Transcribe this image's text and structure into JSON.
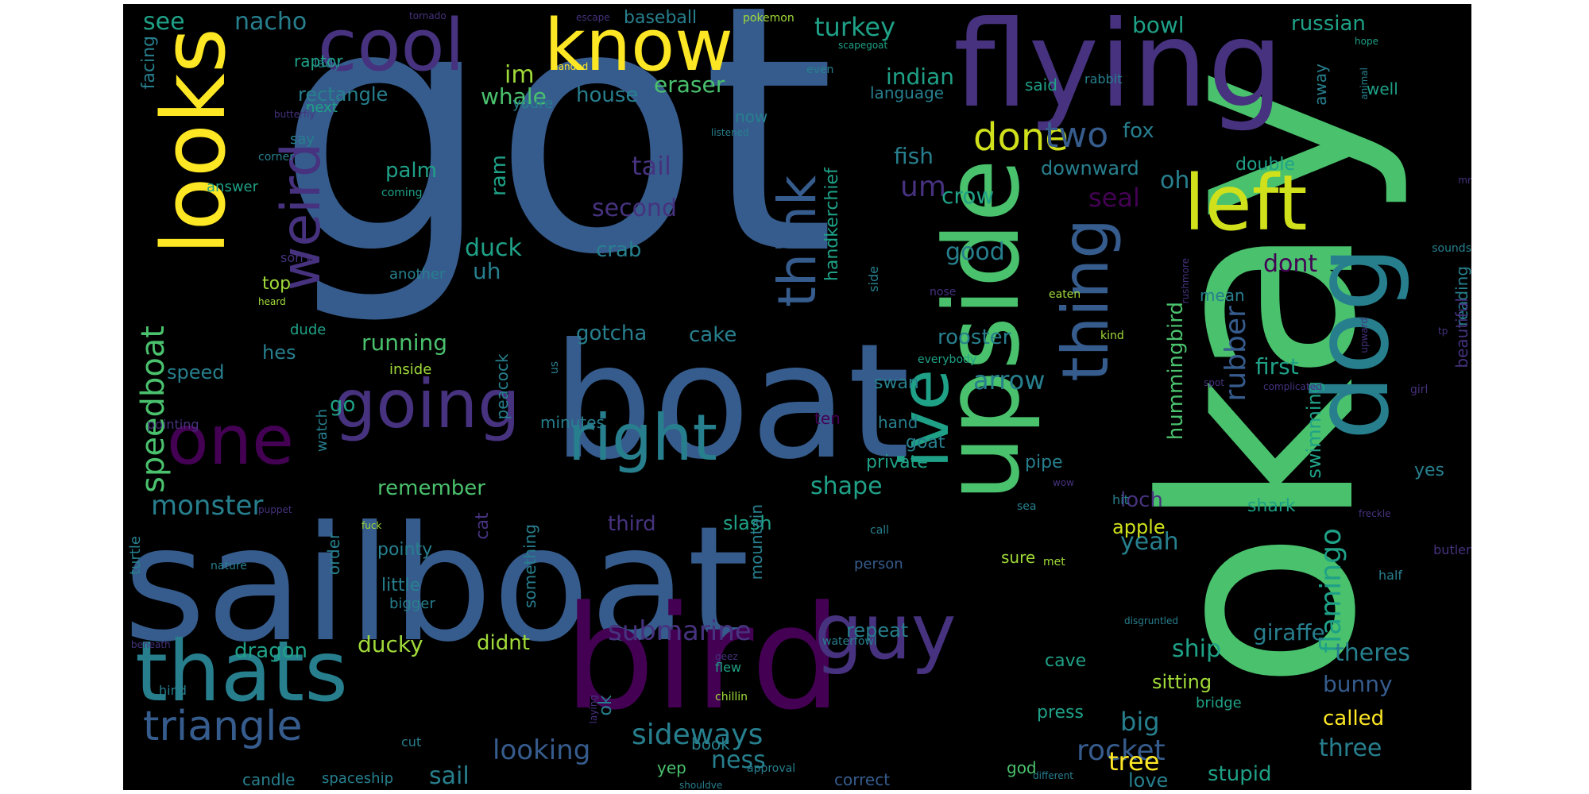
{
  "palette": {
    "background": "#000000",
    "yellow": "#fde725",
    "lime": "#d0e11c",
    "light_green": "#a0da39",
    "green": "#4ac16d",
    "teal_green": "#1fa187",
    "teal": "#277f8e",
    "blue": "#365c8d",
    "indigo": "#46327e",
    "purple": "#440154"
  },
  "words": [
    {
      "text": "got",
      "color": "blue"
    },
    {
      "text": "sailboat",
      "color": "blue"
    },
    {
      "text": "boat",
      "color": "blue"
    },
    {
      "text": "bird",
      "color": "purple"
    },
    {
      "text": "okay",
      "color": "green"
    },
    {
      "text": "flying",
      "color": "indigo"
    },
    {
      "text": "upside",
      "color": "green"
    },
    {
      "text": "dog",
      "color": "teal"
    },
    {
      "text": "looks",
      "color": "yellow"
    },
    {
      "text": "cool",
      "color": "indigo"
    },
    {
      "text": "know",
      "color": "yellow"
    },
    {
      "text": "thats",
      "color": "teal"
    },
    {
      "text": "guy",
      "color": "indigo"
    },
    {
      "text": "left",
      "color": "lime"
    },
    {
      "text": "right",
      "color": "teal"
    },
    {
      "text": "one",
      "color": "purple"
    },
    {
      "text": "going",
      "color": "indigo"
    },
    {
      "text": "ive",
      "color": "teal_green"
    },
    {
      "text": "thing",
      "color": "blue"
    },
    {
      "text": "weird",
      "color": "indigo"
    },
    {
      "text": "think",
      "color": "blue"
    },
    {
      "text": "triangle",
      "color": "blue"
    },
    {
      "text": "done",
      "color": "lime"
    },
    {
      "text": "two",
      "color": "blue"
    },
    {
      "text": "um",
      "color": "indigo"
    },
    {
      "text": "speedboat",
      "color": "green"
    },
    {
      "text": "flamingo",
      "color": "teal_green"
    },
    {
      "text": "rubber",
      "color": "blue"
    },
    {
      "text": "sideways",
      "color": "teal"
    },
    {
      "text": "monster",
      "color": "teal"
    },
    {
      "text": "submarine",
      "color": "indigo"
    },
    {
      "text": "rocket",
      "color": "blue"
    },
    {
      "text": "looking",
      "color": "blue"
    },
    {
      "text": "see",
      "color": "teal_green"
    },
    {
      "text": "nacho",
      "color": "teal"
    },
    {
      "text": "turkey",
      "color": "teal_green"
    },
    {
      "text": "bowl",
      "color": "teal_green"
    },
    {
      "text": "russian",
      "color": "teal_green"
    },
    {
      "text": "im",
      "color": "light_green"
    },
    {
      "text": "eraser",
      "color": "green"
    },
    {
      "text": "indian",
      "color": "teal_green"
    },
    {
      "text": "whale",
      "color": "green"
    },
    {
      "text": "house",
      "color": "teal"
    },
    {
      "text": "rectangle",
      "color": "teal"
    },
    {
      "text": "baseball",
      "color": "teal"
    },
    {
      "text": "fox",
      "color": "teal"
    },
    {
      "text": "fish",
      "color": "teal"
    },
    {
      "text": "tail",
      "color": "indigo"
    },
    {
      "text": "second",
      "color": "indigo"
    },
    {
      "text": "palm",
      "color": "teal_green"
    },
    {
      "text": "ram",
      "color": "teal_green"
    },
    {
      "text": "crow",
      "color": "teal_green"
    },
    {
      "text": "seal",
      "color": "purple"
    },
    {
      "text": "oh",
      "color": "teal"
    },
    {
      "text": "double",
      "color": "teal_green"
    },
    {
      "text": "downward",
      "color": "teal"
    },
    {
      "text": "duck",
      "color": "teal_green"
    },
    {
      "text": "uh",
      "color": "teal"
    },
    {
      "text": "crab",
      "color": "teal"
    },
    {
      "text": "good",
      "color": "teal"
    },
    {
      "text": "dont",
      "color": "purple"
    },
    {
      "text": "handkerchief",
      "color": "teal_green"
    },
    {
      "text": "gotcha",
      "color": "teal"
    },
    {
      "text": "cake",
      "color": "teal"
    },
    {
      "text": "rooster",
      "color": "teal"
    },
    {
      "text": "running",
      "color": "green"
    },
    {
      "text": "hummingbird",
      "color": "green"
    },
    {
      "text": "arrow",
      "color": "teal"
    },
    {
      "text": "first",
      "color": "teal_green"
    },
    {
      "text": "shape",
      "color": "teal_green"
    },
    {
      "text": "remember",
      "color": "green"
    },
    {
      "text": "loch",
      "color": "indigo"
    },
    {
      "text": "yeah",
      "color": "teal"
    },
    {
      "text": "apple",
      "color": "lime"
    },
    {
      "text": "ship",
      "color": "teal_green"
    },
    {
      "text": "giraffe",
      "color": "teal"
    },
    {
      "text": "theres",
      "color": "teal"
    },
    {
      "text": "bunny",
      "color": "blue"
    },
    {
      "text": "called",
      "color": "yellow"
    },
    {
      "text": "three",
      "color": "teal"
    },
    {
      "text": "tree",
      "color": "yellow"
    },
    {
      "text": "big",
      "color": "teal"
    },
    {
      "text": "ness",
      "color": "teal"
    },
    {
      "text": "stupid",
      "color": "teal_green"
    },
    {
      "text": "love",
      "color": "teal"
    },
    {
      "text": "sail",
      "color": "teal"
    },
    {
      "text": "dragon",
      "color": "teal_green"
    },
    {
      "text": "ducky",
      "color": "light_green"
    },
    {
      "text": "didnt",
      "color": "light_green"
    },
    {
      "text": "repeat",
      "color": "teal"
    },
    {
      "text": "sitting",
      "color": "light_green"
    },
    {
      "text": "swimming",
      "color": "teal_green"
    },
    {
      "text": "go",
      "color": "teal_green"
    },
    {
      "text": "hes",
      "color": "teal"
    },
    {
      "text": "speed",
      "color": "teal"
    },
    {
      "text": "top",
      "color": "light_green"
    },
    {
      "text": "private",
      "color": "teal_green"
    },
    {
      "text": "slash",
      "color": "teal_green"
    },
    {
      "text": "third",
      "color": "indigo"
    },
    {
      "text": "pointy",
      "color": "teal"
    },
    {
      "text": "little",
      "color": "teal"
    },
    {
      "text": "cat",
      "color": "indigo"
    },
    {
      "text": "ok",
      "color": "teal"
    },
    {
      "text": "swan",
      "color": "teal"
    },
    {
      "text": "goat",
      "color": "teal"
    },
    {
      "text": "pipe",
      "color": "teal"
    },
    {
      "text": "shark",
      "color": "teal_green"
    },
    {
      "text": "yes",
      "color": "teal"
    },
    {
      "text": "cave",
      "color": "teal_green"
    },
    {
      "text": "press",
      "color": "teal_green"
    },
    {
      "text": "sure",
      "color": "light_green"
    },
    {
      "text": "mean",
      "color": "teal"
    },
    {
      "text": "reading",
      "color": "teal"
    },
    {
      "text": "beautiful",
      "color": "indigo"
    },
    {
      "text": "peacock",
      "color": "teal"
    },
    {
      "text": "minutes",
      "color": "teal"
    },
    {
      "text": "hand",
      "color": "teal"
    },
    {
      "text": "ten",
      "color": "purple"
    },
    {
      "text": "mountain",
      "color": "teal"
    },
    {
      "text": "something",
      "color": "teal"
    },
    {
      "text": "order",
      "color": "teal"
    },
    {
      "text": "bigger",
      "color": "teal"
    },
    {
      "text": "person",
      "color": "blue"
    },
    {
      "text": "correct",
      "color": "blue"
    },
    {
      "text": "book",
      "color": "teal"
    },
    {
      "text": "yep",
      "color": "green"
    },
    {
      "text": "god",
      "color": "green"
    },
    {
      "text": "bridge",
      "color": "teal_green"
    },
    {
      "text": "spaceship",
      "color": "teal"
    },
    {
      "text": "candle",
      "color": "teal"
    },
    {
      "text": "watch",
      "color": "teal"
    },
    {
      "text": "answer",
      "color": "teal_green"
    },
    {
      "text": "facing",
      "color": "teal"
    },
    {
      "text": "raptor",
      "color": "teal_green"
    },
    {
      "text": "lady",
      "color": "teal"
    },
    {
      "text": "next",
      "color": "teal_green"
    },
    {
      "text": "say",
      "color": "teal"
    },
    {
      "text": "youre",
      "color": "teal"
    },
    {
      "text": "language",
      "color": "teal"
    },
    {
      "text": "away",
      "color": "teal"
    },
    {
      "text": "said",
      "color": "teal_green"
    },
    {
      "text": "well",
      "color": "teal_green"
    },
    {
      "text": "now",
      "color": "teal"
    },
    {
      "text": "pokemon",
      "color": "light_green"
    },
    {
      "text": "tornado",
      "color": "indigo"
    },
    {
      "text": "escape",
      "color": "indigo"
    },
    {
      "text": "scapegoat",
      "color": "teal_green"
    },
    {
      "text": "handed",
      "color": "yellow"
    },
    {
      "text": "even",
      "color": "teal"
    },
    {
      "text": "rabbit",
      "color": "teal"
    },
    {
      "text": "hope",
      "color": "teal_green"
    },
    {
      "text": "animal",
      "color": "teal"
    },
    {
      "text": "butterfly",
      "color": "indigo"
    },
    {
      "text": "listened",
      "color": "teal"
    },
    {
      "text": "corner",
      "color": "teal"
    },
    {
      "text": "coming",
      "color": "teal_green"
    },
    {
      "text": "sorry",
      "color": "indigo"
    },
    {
      "text": "another",
      "color": "teal"
    },
    {
      "text": "heard",
      "color": "light_green"
    },
    {
      "text": "dude",
      "color": "teal_green"
    },
    {
      "text": "inside",
      "color": "light_green"
    },
    {
      "text": "us",
      "color": "teal"
    },
    {
      "text": "side",
      "color": "teal"
    },
    {
      "text": "nose",
      "color": "indigo"
    },
    {
      "text": "eaten",
      "color": "light_green"
    },
    {
      "text": "rushmore",
      "color": "indigo"
    },
    {
      "text": "kind",
      "color": "light_green"
    },
    {
      "text": "everybody",
      "color": "teal_green"
    },
    {
      "text": "complicated",
      "color": "indigo"
    },
    {
      "text": "spot",
      "color": "indigo"
    },
    {
      "text": "tp",
      "color": "indigo"
    },
    {
      "text": "mr",
      "color": "indigo"
    },
    {
      "text": "upward",
      "color": "indigo"
    },
    {
      "text": "girl",
      "color": "indigo"
    },
    {
      "text": "sounds",
      "color": "teal"
    },
    {
      "text": "pointing",
      "color": "indigo"
    },
    {
      "text": "turtle",
      "color": "teal"
    },
    {
      "text": "puppet",
      "color": "indigo"
    },
    {
      "text": "fuck",
      "color": "light_green"
    },
    {
      "text": "nature",
      "color": "teal"
    },
    {
      "text": "wow",
      "color": "indigo"
    },
    {
      "text": "hit",
      "color": "teal"
    },
    {
      "text": "sea",
      "color": "teal"
    },
    {
      "text": "call",
      "color": "teal"
    },
    {
      "text": "met",
      "color": "light_green"
    },
    {
      "text": "half",
      "color": "teal"
    },
    {
      "text": "butler",
      "color": "indigo"
    },
    {
      "text": "freckle",
      "color": "indigo"
    },
    {
      "text": "disgruntled",
      "color": "teal"
    },
    {
      "text": "waterfowl",
      "color": "teal"
    },
    {
      "text": "geez",
      "color": "indigo"
    },
    {
      "text": "flew",
      "color": "teal_green"
    },
    {
      "text": "chillin",
      "color": "light_green"
    },
    {
      "text": "beneath",
      "color": "indigo"
    },
    {
      "text": "hind",
      "color": "teal"
    },
    {
      "text": "laying",
      "color": "indigo"
    },
    {
      "text": "cut",
      "color": "teal"
    },
    {
      "text": "approval",
      "color": "teal"
    },
    {
      "text": "shouldve",
      "color": "teal"
    },
    {
      "text": "different",
      "color": "teal"
    }
  ]
}
